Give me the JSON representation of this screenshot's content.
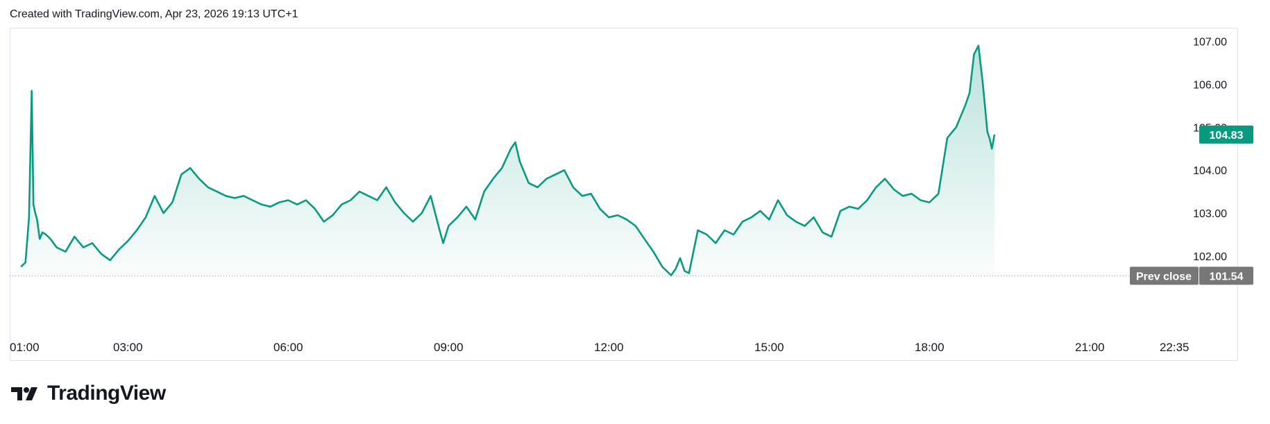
{
  "header": {
    "text": "Created with TradingView.com, Apr 23, 2026 19:13 UTC+1"
  },
  "brand": {
    "name": "TradingView",
    "icon": "tradingview-logo-icon"
  },
  "colors": {
    "line": "#089981",
    "fill": "#089981",
    "tag_current": "#089981",
    "tag_prev": "#777777"
  },
  "chart_data": {
    "type": "area",
    "x_unit": "time of day",
    "x_ticks": [
      "01:00",
      "03:00",
      "06:00",
      "09:00",
      "12:00",
      "15:00",
      "18:00",
      "21:00",
      "22:35"
    ],
    "y_ticks": [
      "102.00",
      "103.00",
      "104.00",
      "105.00",
      "106.00",
      "107.00"
    ],
    "ylim": [
      101.4,
      107.35
    ],
    "xlim": [
      "00:52",
      "23:20"
    ],
    "grid": false,
    "prev_close": {
      "label": "Prev close",
      "value": "101.54"
    },
    "current": {
      "value": "104.83"
    },
    "series": [
      {
        "x": [
          "01:00",
          "01:05",
          "01:09",
          "01:12",
          "01:14",
          "01:16",
          "01:18",
          "01:21",
          "01:24",
          "01:28",
          "01:33",
          "01:40",
          "01:50",
          "02:00",
          "02:10",
          "02:20",
          "02:30",
          "02:40",
          "02:50",
          "03:00",
          "03:10",
          "03:20",
          "03:30",
          "03:40",
          "03:50",
          "04:00",
          "04:10",
          "04:20",
          "04:30",
          "04:40",
          "04:50",
          "05:00",
          "05:10",
          "05:20",
          "05:30",
          "05:40",
          "05:50",
          "06:00",
          "06:10",
          "06:20",
          "06:30",
          "06:40",
          "06:50",
          "07:00",
          "07:10",
          "07:20",
          "07:30",
          "07:40",
          "07:50",
          "08:00",
          "08:10",
          "08:20",
          "08:30",
          "08:40",
          "08:50",
          "08:54",
          "09:00",
          "09:10",
          "09:20",
          "09:30",
          "09:40",
          "09:50",
          "10:00",
          "10:10",
          "10:15",
          "10:20",
          "10:30",
          "10:40",
          "10:50",
          "11:00",
          "11:10",
          "11:20",
          "11:30",
          "11:40",
          "11:50",
          "12:00",
          "12:10",
          "12:20",
          "12:30",
          "12:40",
          "12:50",
          "13:00",
          "13:10",
          "13:15",
          "13:20",
          "13:25",
          "13:30",
          "13:40",
          "13:50",
          "14:00",
          "14:10",
          "14:20",
          "14:30",
          "14:40",
          "14:50",
          "15:00",
          "15:10",
          "15:20",
          "15:30",
          "15:40",
          "15:50",
          "16:00",
          "16:10",
          "16:20",
          "16:30",
          "16:40",
          "16:50",
          "17:00",
          "17:10",
          "17:20",
          "17:30",
          "17:40",
          "17:50",
          "18:00",
          "18:10",
          "18:20",
          "18:30",
          "18:40",
          "18:45",
          "18:50",
          "18:55",
          "19:00",
          "19:05",
          "19:08",
          "19:10",
          "19:13"
        ],
        "y": [
          101.75,
          101.85,
          102.9,
          105.85,
          103.2,
          103.0,
          102.85,
          102.4,
          102.55,
          102.5,
          102.4,
          102.2,
          102.1,
          102.45,
          102.2,
          102.3,
          102.05,
          101.9,
          102.15,
          102.35,
          102.6,
          102.9,
          103.4,
          103.0,
          103.25,
          103.9,
          104.05,
          103.8,
          103.6,
          103.5,
          103.4,
          103.35,
          103.4,
          103.3,
          103.2,
          103.15,
          103.25,
          103.3,
          103.2,
          103.3,
          103.1,
          102.8,
          102.95,
          103.2,
          103.3,
          103.5,
          103.4,
          103.3,
          103.6,
          103.25,
          103.0,
          102.8,
          103.0,
          103.4,
          102.6,
          102.3,
          102.7,
          102.9,
          103.15,
          102.85,
          103.5,
          103.8,
          104.05,
          104.5,
          104.65,
          104.2,
          103.7,
          103.6,
          103.8,
          103.9,
          104.0,
          103.6,
          103.4,
          103.45,
          103.1,
          102.9,
          102.95,
          102.85,
          102.7,
          102.4,
          102.1,
          101.75,
          101.55,
          101.7,
          101.95,
          101.65,
          101.6,
          102.6,
          102.5,
          102.3,
          102.6,
          102.5,
          102.8,
          102.9,
          103.05,
          102.85,
          103.3,
          102.95,
          102.8,
          102.7,
          102.9,
          102.55,
          102.45,
          103.05,
          103.15,
          103.1,
          103.3,
          103.6,
          103.8,
          103.55,
          103.4,
          103.45,
          103.3,
          103.25,
          103.45,
          104.75,
          105.0,
          105.5,
          105.8,
          106.7,
          106.9,
          106.0,
          104.9,
          104.7,
          104.5,
          104.83
        ]
      }
    ]
  }
}
